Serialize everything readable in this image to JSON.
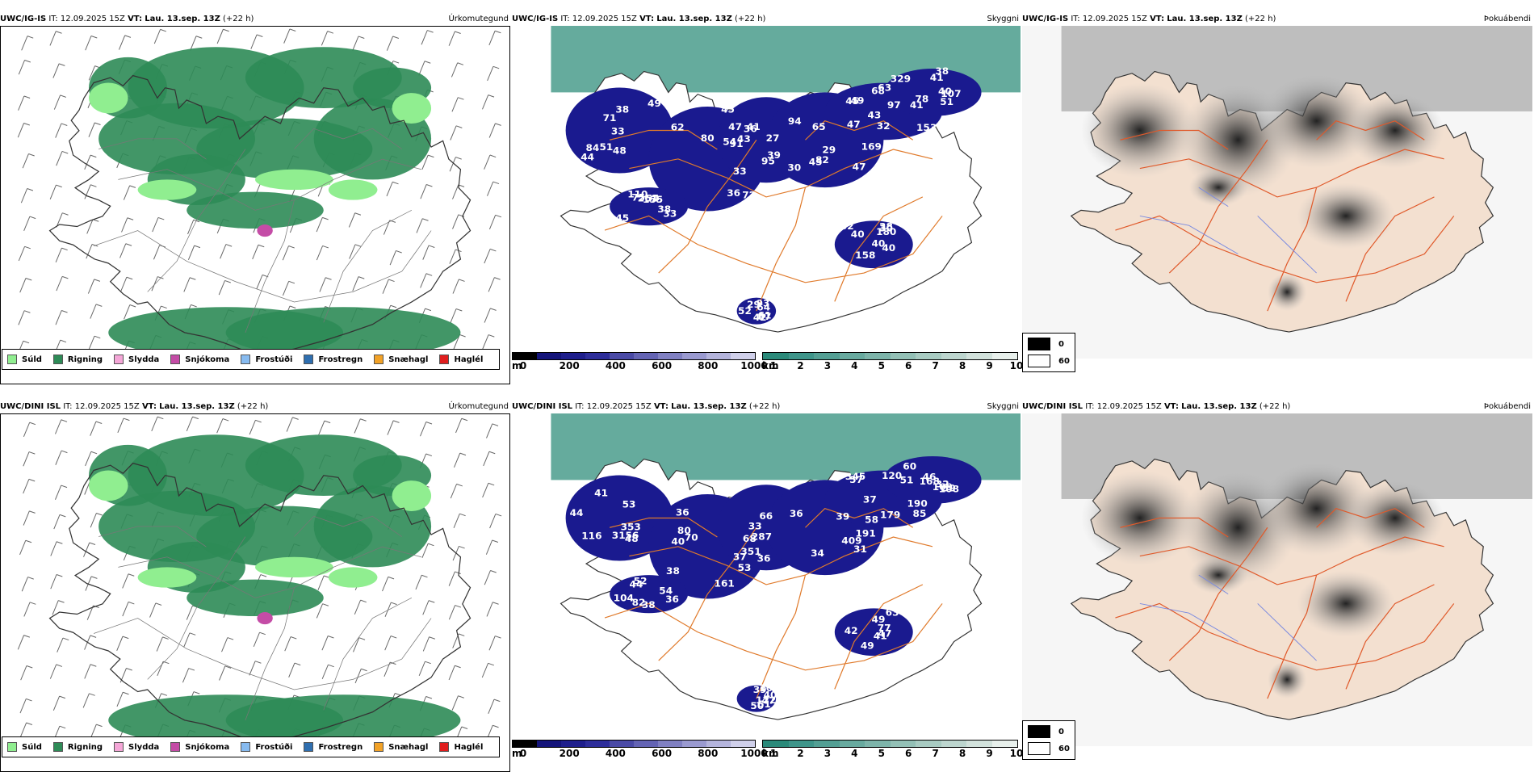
{
  "rows": [
    {
      "precip": {
        "model": "UWC/IG-IS",
        "it_label": "IT:",
        "it": "12.09.2025 15Z",
        "vt_label": "VT:",
        "vt": "Lau. 13.sep. 13Z",
        "lead": "(+22 h)",
        "title": "Úrkomutegund"
      },
      "cloud": {
        "model": "UWC/IG-IS",
        "it_label": "IT:",
        "it": "12.09.2025 15Z",
        "vt_label": "VT:",
        "vt": "Lau. 13.sep. 13Z",
        "lead": "(+22 h)",
        "title": "Skyggni"
      },
      "vis": {
        "model": "UWC/IG-IS",
        "it_label": "IT:",
        "it": "12.09.2025 15Z",
        "vt_label": "VT:",
        "vt": "Lau. 13.sep. 13Z",
        "lead": "(+22 h)",
        "title": "Þokuábendi"
      },
      "labels": [
        "44",
        "33",
        "27",
        "29",
        "68",
        "38",
        "33",
        "38",
        "61",
        "51",
        "72",
        "41",
        "45",
        "63",
        "51",
        "75",
        "40",
        "52",
        "33",
        "36",
        "45",
        "30",
        "32",
        "40",
        "38",
        "30",
        "29",
        "38",
        "43",
        "39",
        "47",
        "43",
        "41",
        "45",
        "40",
        "42",
        "48",
        "54",
        "47",
        "82",
        "49",
        "78",
        "110",
        "158",
        "64",
        "71",
        "80",
        "95",
        "169",
        "153",
        "329",
        "261",
        "62",
        "87",
        "84",
        "62",
        "94",
        "65",
        "97",
        "107",
        "155",
        "180",
        "93",
        "49",
        "36",
        "91",
        "45",
        "47",
        "41",
        "54",
        "40"
      ]
    },
    {
      "precip": {
        "model": "UWC/DINI ISL",
        "it_label": "IT:",
        "it": "12.09.2025 15Z",
        "vt_label": "VT:",
        "vt": "Lau. 13.sep. 13Z",
        "lead": "(+22 h)",
        "title": "Úrkomutegund"
      },
      "cloud": {
        "model": "UWC/DINI ISL",
        "it_label": "IT:",
        "it": "12.09.2025 15Z",
        "vt_label": "VT:",
        "vt": "Lau. 13.sep. 13Z",
        "lead": "(+22 h)",
        "title": "Skyggni"
      },
      "vis": {
        "model": "UWC/DINI ISL",
        "it_label": "IT:",
        "it": "12.09.2025 15Z",
        "vt_label": "VT:",
        "vt": "Lau. 13.sep. 13Z",
        "lead": "(+22 h)",
        "title": "Þokuábendi"
      },
      "labels": [
        "56",
        "40",
        "36",
        "34",
        "85",
        "60",
        "44",
        "63",
        "50",
        "53",
        "80",
        "37",
        "39",
        "120",
        "46",
        "36",
        "42",
        "61",
        "31",
        "36",
        "33",
        "31",
        "57",
        "32",
        "52",
        "49",
        "47",
        "41",
        "38",
        "36",
        "37",
        "51",
        "59",
        "54",
        "49",
        "40",
        "44",
        "68",
        "66",
        "58",
        "345",
        "108",
        "104",
        "77",
        "108",
        "353",
        "161",
        "287",
        "191",
        "179",
        "169",
        "82",
        "47",
        "122",
        "116",
        "70",
        "351",
        "409",
        "190",
        "168",
        "38",
        "41",
        "39",
        "48",
        "53"
      ]
    }
  ],
  "precip_legend": [
    {
      "label": "Súld",
      "color": "#90ee90"
    },
    {
      "label": "Rigning",
      "color": "#2e8b57"
    },
    {
      "label": "Slydda",
      "color": "#f4a6d7"
    },
    {
      "label": "Snjókoma",
      "color": "#c44ca6"
    },
    {
      "label": "Frostúði",
      "color": "#87bbf0"
    },
    {
      "label": "Frostregn",
      "color": "#2f6fb0"
    },
    {
      "label": "Snæhagl",
      "color": "#f2a227"
    },
    {
      "label": "Haglél",
      "color": "#e01e1e"
    }
  ],
  "cloud_base_colorbar": {
    "unit": "m",
    "ticks": [
      "0",
      "200",
      "400",
      "600",
      "800",
      "1000"
    ],
    "colors": [
      "#000000",
      "#14147a",
      "#1e1e8c",
      "#2d2d9a",
      "#4a4aa6",
      "#6464b4",
      "#8080c2",
      "#9a9ad0",
      "#b4b4dc",
      "#d0d0ea"
    ]
  },
  "visibility_colorbar": {
    "unit": "km",
    "ticks": [
      "1",
      "2",
      "3",
      "4",
      "5",
      "6",
      "7",
      "8",
      "9",
      "10"
    ],
    "colors": [
      "#2b8a7a",
      "#3e958a",
      "#539f94",
      "#68aa9f",
      "#7db4aa",
      "#93c0b6",
      "#a8cbc2",
      "#bdd6cf",
      "#d2e2dc",
      "#e8f0ec"
    ]
  },
  "fog_legend": [
    {
      "label": "0",
      "color": "#000000"
    },
    {
      "label": "60",
      "color": "#ffffff"
    }
  ]
}
